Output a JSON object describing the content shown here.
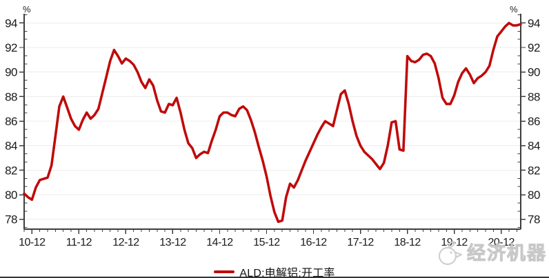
{
  "legend": {
    "label": "ALD:电解铝:开工率"
  },
  "watermark": {
    "text": "经济机器",
    "icon": "bird-logo"
  },
  "colors": {
    "series": "#c00a0a",
    "axis": "#3d3d3d",
    "grid": "#ececec",
    "tick_label": "#1a1a1a",
    "watermark": "#d9d9d9",
    "bottom_rule": "#333333"
  },
  "chart_data": {
    "type": "line",
    "title": "",
    "y_unit": "%",
    "grid": "horizontal-major",
    "legend_position": "bottom-center",
    "ylim": [
      77.2,
      94.75
    ],
    "y_ticks": [
      78,
      80,
      82,
      84,
      86,
      88,
      90,
      92,
      94
    ],
    "x_tick_labels": [
      "10-12",
      "11-12",
      "12-12",
      "13-12",
      "14-12",
      "15-12",
      "16-12",
      "17-12",
      "18-12",
      "19-12",
      "20-12"
    ],
    "x_tick_month_indices": [
      2,
      14,
      26,
      38,
      50,
      62,
      74,
      86,
      98,
      110,
      122
    ],
    "series": [
      {
        "name": "ALD:电解铝:开工率",
        "color": "#c00a0a",
        "frequency": "monthly",
        "x_start": "2010-10",
        "x_end": "2021-05",
        "values": [
          80.1,
          79.8,
          79.6,
          80.6,
          81.2,
          81.3,
          81.4,
          82.4,
          84.8,
          87.2,
          88.0,
          87.1,
          86.2,
          85.6,
          85.3,
          86.1,
          86.7,
          86.2,
          86.5,
          87.0,
          88.3,
          89.6,
          90.9,
          91.8,
          91.3,
          90.7,
          91.1,
          90.9,
          90.6,
          90.0,
          89.2,
          88.7,
          89.4,
          88.9,
          87.7,
          86.8,
          86.7,
          87.4,
          87.3,
          87.9,
          86.7,
          85.3,
          84.2,
          83.8,
          83.0,
          83.3,
          83.5,
          83.4,
          84.4,
          85.3,
          86.4,
          86.7,
          86.7,
          86.5,
          86.4,
          87.0,
          87.2,
          86.9,
          86.1,
          85.1,
          83.9,
          82.8,
          81.5,
          79.9,
          78.6,
          77.8,
          77.9,
          79.8,
          80.9,
          80.6,
          81.2,
          82.0,
          82.8,
          83.5,
          84.2,
          84.9,
          85.5,
          86.0,
          85.8,
          85.6,
          86.9,
          88.2,
          88.5,
          87.4,
          86.0,
          84.8,
          84.0,
          83.5,
          83.2,
          82.9,
          82.5,
          82.1,
          82.6,
          84.0,
          85.9,
          86.0,
          83.7,
          83.6,
          91.3,
          90.9,
          90.8,
          91.0,
          91.4,
          91.5,
          91.3,
          90.7,
          89.5,
          87.9,
          87.4,
          87.4,
          88.1,
          89.2,
          89.9,
          90.3,
          89.8,
          89.1,
          89.5,
          89.7,
          90.0,
          90.5,
          91.8,
          92.9,
          93.3,
          93.7,
          94.0,
          93.8,
          93.8,
          93.9
        ]
      }
    ]
  }
}
